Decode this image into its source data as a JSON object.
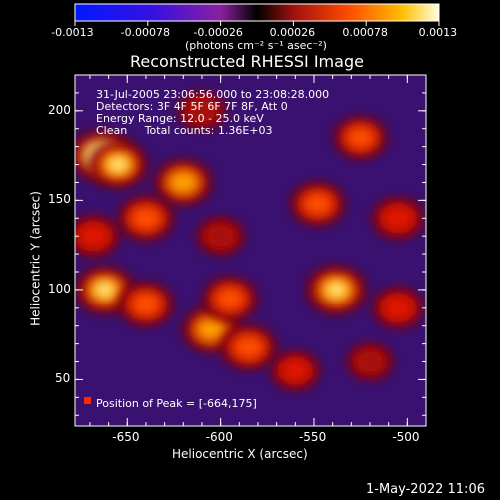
{
  "colorbar": {
    "tick_labels": [
      "-0.0013",
      "-0.00078",
      "-0.00026",
      "0.00026",
      "0.00078",
      "0.0013"
    ],
    "units": "(photons cm⁻² s⁻¹ asec⁻²)",
    "min": -0.0013,
    "max": 0.0013
  },
  "chart_data": {
    "type": "heatmap",
    "title": "Reconstructed RHESSI Image",
    "xlabel": "Heliocentric X (arcsec)",
    "ylabel": "Heliocentric Y (arcsec)",
    "xlim": [
      -678,
      -490
    ],
    "ylim": [
      24,
      220
    ],
    "x_ticks": [
      "-650",
      "-600",
      "-550",
      "-500"
    ],
    "y_ticks": [
      "50",
      "100",
      "150",
      "200"
    ],
    "x_tick_values": [
      -650,
      -600,
      -550,
      -500
    ],
    "y_tick_values": [
      50,
      100,
      150,
      200
    ],
    "annotations": [
      "31-Jul-2005 23:06:56.000 to 23:08:28.000",
      "Detectors: 3F 4F 5F 6F 7F 8F, Att 0",
      "Energy Range: 12.0 - 25.0 keV",
      "Clean     Total counts: 1.36E+03"
    ],
    "peak_label": "Position of Peak = [-664,175]",
    "peak_position": [
      -664,
      175
    ],
    "hot_regions": [
      {
        "x": -664,
        "y": 175,
        "level": 1.0
      },
      {
        "x": -655,
        "y": 170,
        "level": 0.85
      },
      {
        "x": -620,
        "y": 160,
        "level": 0.8
      },
      {
        "x": -640,
        "y": 140,
        "level": 0.75
      },
      {
        "x": -668,
        "y": 130,
        "level": 0.6
      },
      {
        "x": -662,
        "y": 100,
        "level": 0.85
      },
      {
        "x": -640,
        "y": 92,
        "level": 0.7
      },
      {
        "x": -605,
        "y": 78,
        "level": 0.8
      },
      {
        "x": -595,
        "y": 95,
        "level": 0.7
      },
      {
        "x": -585,
        "y": 68,
        "level": 0.75
      },
      {
        "x": -538,
        "y": 100,
        "level": 0.9
      },
      {
        "x": -548,
        "y": 148,
        "level": 0.7
      },
      {
        "x": -525,
        "y": 185,
        "level": 0.65
      },
      {
        "x": -505,
        "y": 140,
        "level": 0.6
      },
      {
        "x": -505,
        "y": 90,
        "level": 0.55
      },
      {
        "x": -560,
        "y": 55,
        "level": 0.5
      },
      {
        "x": -600,
        "y": 130,
        "level": 0.45
      },
      {
        "x": -610,
        "y": 200,
        "level": 0.45
      },
      {
        "x": -520,
        "y": 60,
        "level": 0.4
      }
    ]
  },
  "footer": {
    "date_label": "1-May-2022 11:06"
  }
}
